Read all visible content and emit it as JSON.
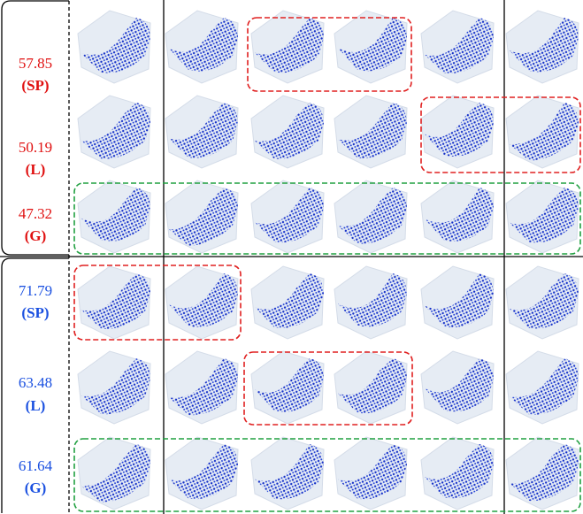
{
  "groups": [
    {
      "rows": [
        {
          "score": "57.85",
          "label": "(SP)"
        },
        {
          "score": "50.19",
          "label": "(L)"
        },
        {
          "score": "47.32",
          "label": "(G)"
        }
      ]
    },
    {
      "rows": [
        {
          "score": "71.79",
          "label": "(SP)"
        },
        {
          "score": "63.48",
          "label": "(L)"
        },
        {
          "score": "61.64",
          "label": "(G)"
        }
      ]
    }
  ]
}
